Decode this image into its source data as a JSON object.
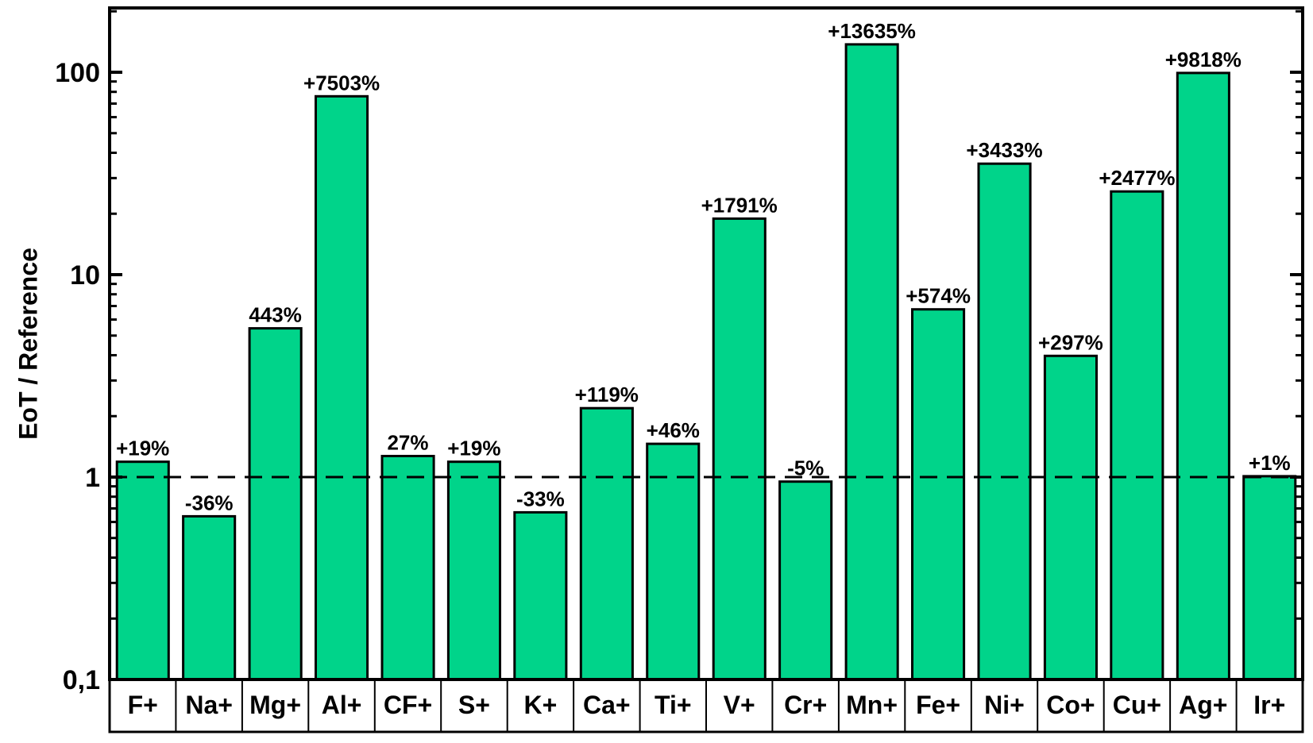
{
  "chart_data": {
    "type": "bar",
    "scale": "log",
    "ylabel": "EoT / Reference",
    "xlabel": "",
    "ylim": [
      0.1,
      200
    ],
    "yticks": [
      {
        "value": 0.1,
        "label": "0,1"
      },
      {
        "value": 1,
        "label": "1"
      },
      {
        "value": 10,
        "label": "10"
      },
      {
        "value": 100,
        "label": "100"
      }
    ],
    "reference_line": 1,
    "categories": [
      "F+",
      "Na+",
      "Mg+",
      "Al+",
      "CF+",
      "S+",
      "K+",
      "Ca+",
      "Ti+",
      "V+",
      "Cr+",
      "Mn+",
      "Fe+",
      "Ni+",
      "Co+",
      "Cu+",
      "Ag+",
      "Ir+"
    ],
    "values": [
      1.19,
      0.64,
      5.43,
      76.03,
      1.27,
      1.19,
      0.67,
      2.19,
      1.46,
      18.91,
      0.95,
      137.35,
      6.74,
      35.33,
      3.97,
      25.77,
      99.18,
      1.01
    ],
    "data_labels": [
      "+19%",
      "-36%",
      "443%",
      "+7503%",
      "27%",
      "+19%",
      "-33%",
      "+119%",
      "+46%",
      "+1791%",
      "-5%",
      "+13635%",
      "+574%",
      "+3433%",
      "+297%",
      "+2477%",
      "+9818%",
      "+1%"
    ],
    "bar_color": "#00d48a"
  }
}
